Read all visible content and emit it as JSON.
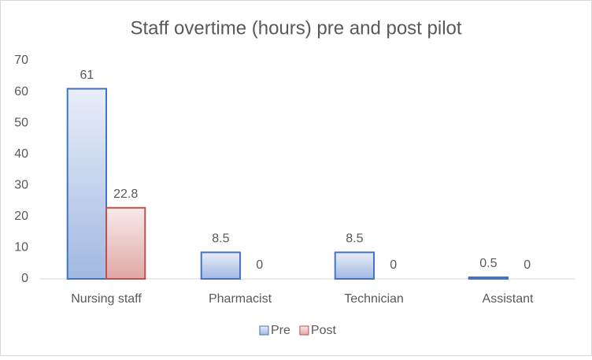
{
  "chart_data": {
    "type": "bar",
    "title": "Staff overtime  (hours) pre and post pilot",
    "categories": [
      "Nursing staff",
      "Pharmacist",
      "Technician",
      "Assistant"
    ],
    "series": [
      {
        "name": "Pre",
        "color": "#4472c4",
        "values": [
          61,
          8.5,
          8.5,
          0.5
        ]
      },
      {
        "name": "Post",
        "color": "#c0504d",
        "values": [
          22.8,
          0,
          0,
          0
        ]
      }
    ],
    "ylim": [
      0,
      70
    ],
    "yticks": [
      0,
      10,
      20,
      30,
      40,
      50,
      60,
      70
    ],
    "grid": false,
    "legend": "bottom"
  }
}
